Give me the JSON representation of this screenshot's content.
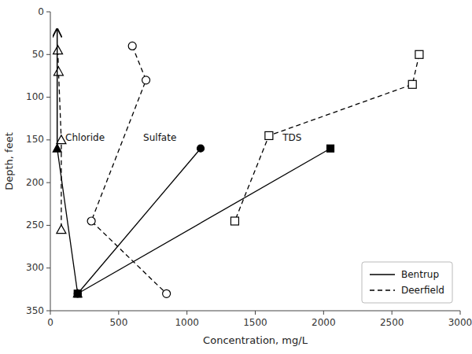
{
  "chart_data": {
    "type": "line",
    "xlabel": "Concentration, mg/L",
    "ylabel": "Depth, feet",
    "xlim": [
      0,
      3000
    ],
    "ylim": [
      350,
      0
    ],
    "xticks": [
      0,
      500,
      1000,
      1500,
      2000,
      2500,
      3000
    ],
    "yticks": [
      0,
      50,
      100,
      150,
      200,
      250,
      300,
      350
    ],
    "grid": false,
    "legend": "lower right",
    "series": [
      {
        "name": "Bentrup",
        "color": "black",
        "marker": "triangle",
        "line_style": "solid",
        "x": [
          50,
          200
        ],
        "values": [
          160,
          330
        ]
      },
      {
        "name": "Bentrup",
        "color": "black",
        "marker": "circle",
        "line_style": "solid",
        "x": [
          1100,
          200
        ],
        "values": [
          160,
          330
        ]
      },
      {
        "name": "Bentrup",
        "color": "black",
        "marker": "square",
        "line_style": "solid",
        "x": [
          2050,
          200
        ],
        "values": [
          160,
          330
        ]
      },
      {
        "name": "Deerfield",
        "color": "black",
        "marker": "open-triangle",
        "line_style": "dashed",
        "x": [
          55,
          60,
          80,
          80
        ],
        "values": [
          45,
          70,
          150,
          255
        ]
      },
      {
        "name": "Deerfield",
        "color": "black",
        "marker": "open-circle",
        "line_style": "dashed",
        "x": [
          600,
          700,
          300,
          850
        ],
        "values": [
          40,
          80,
          245,
          330
        ]
      },
      {
        "name": "Deerfield",
        "color": "black",
        "marker": "open-square",
        "line_style": "dashed",
        "x": [
          2700,
          2650,
          1600,
          1350
        ],
        "values": [
          50,
          85,
          145,
          245
        ]
      }
    ],
    "arrow": {
      "x": [
        50,
        50
      ],
      "y": [
        160,
        20
      ]
    },
    "annotations": [
      {
        "text": "Chloride",
        "x": 110,
        "y": 148
      },
      {
        "text": "Sulfate",
        "x": 680,
        "y": 148
      },
      {
        "text": "TDS",
        "x": 1700,
        "y": 148
      }
    ]
  }
}
